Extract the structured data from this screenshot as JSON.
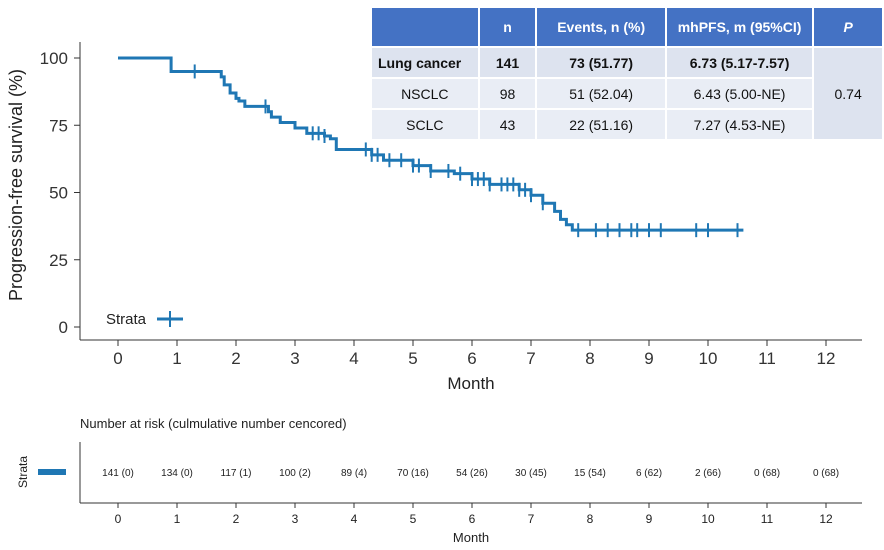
{
  "chart_data": [
    {
      "type": "line",
      "subtype": "kaplan-meier",
      "xlabel": "Month",
      "ylabel": "Progression-free survival (%)",
      "xlim": [
        0,
        12
      ],
      "ylim": [
        0,
        100
      ],
      "x_ticks": [
        "0",
        "1",
        "2",
        "3",
        "4",
        "5",
        "6",
        "7",
        "8",
        "9",
        "10",
        "11",
        "12"
      ],
      "y_ticks": [
        "0",
        "25",
        "50",
        "75",
        "100"
      ],
      "legend": {
        "label": "Strata",
        "position": "bottom-left"
      },
      "color": "#1f77b4",
      "series": [
        {
          "name": "Strata",
          "x": [
            0,
            0.75,
            0.9,
            1.5,
            1.75,
            1.8,
            1.9,
            2.0,
            2.05,
            2.15,
            2.5,
            2.55,
            2.6,
            2.75,
            3.0,
            3.2,
            3.5,
            3.6,
            3.7,
            4.3,
            4.5,
            5.0,
            5.3,
            5.7,
            6.0,
            6.3,
            6.8,
            7.0,
            7.2,
            7.4,
            7.5,
            7.6,
            7.7,
            10.6
          ],
          "y": [
            100,
            100,
            95,
            95,
            93,
            90,
            87,
            85,
            84,
            82,
            82,
            80,
            78,
            76,
            74,
            72,
            71,
            70,
            66,
            64,
            62,
            60,
            58,
            57,
            55,
            53,
            51,
            49,
            46,
            43,
            40,
            38,
            36,
            36
          ]
        }
      ],
      "censor_x": [
        1.3,
        2.5,
        3.3,
        3.4,
        3.5,
        4.2,
        4.3,
        4.4,
        4.6,
        4.8,
        5.0,
        5.1,
        5.3,
        5.6,
        5.8,
        6.0,
        6.1,
        6.2,
        6.3,
        6.5,
        6.6,
        6.7,
        6.8,
        6.9,
        7.0,
        7.2,
        7.8,
        8.1,
        8.3,
        8.5,
        8.7,
        8.8,
        9.0,
        9.2,
        9.8,
        10.0,
        10.5
      ]
    },
    {
      "type": "table",
      "title": "Number at risk (culmulative number cencored)",
      "row_label": "Strata",
      "xlabel": "Month",
      "x_ticks": [
        "0",
        "1",
        "2",
        "3",
        "4",
        "5",
        "6",
        "7",
        "8",
        "9",
        "10",
        "11",
        "12"
      ],
      "values": [
        "141 (0)",
        "134 (0)",
        "117 (1)",
        "100 (2)",
        "89 (4)",
        "70 (16)",
        "54 (26)",
        "30 (45)",
        "15 (54)",
        "6 (62)",
        "2 (66)",
        "0 (68)",
        "0 (68)"
      ]
    }
  ],
  "stats_table": {
    "headers": [
      "",
      "n",
      "Events, n (%)",
      "mhPFS, m (95%CI)",
      "P"
    ],
    "rows": [
      [
        "Lung cancer",
        "141",
        "73 (51.77)",
        "6.73 (5.17-7.57)"
      ],
      [
        "NSCLC",
        "98",
        "51 (52.04)",
        "6.43 (5.00-NE)"
      ],
      [
        "SCLC",
        "43",
        "22 (51.16)",
        "7.27 (4.53-NE)"
      ]
    ],
    "p_value": "0.74"
  }
}
